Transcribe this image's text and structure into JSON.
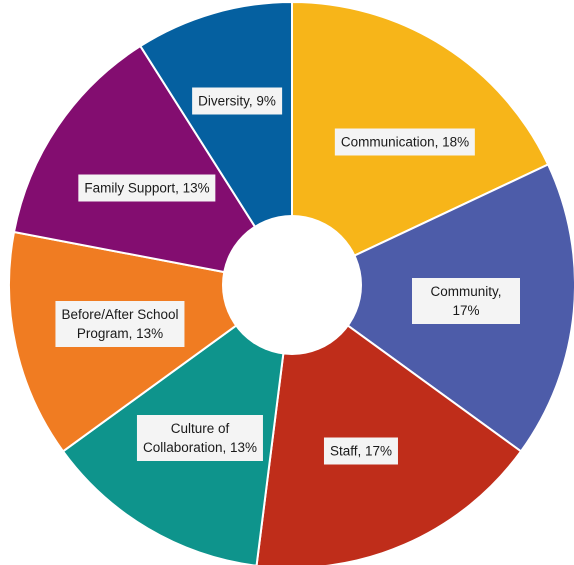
{
  "chart_data": {
    "type": "pie",
    "donut": true,
    "title": "",
    "start_angle_deg": 0,
    "direction": "clockwise",
    "slices": [
      {
        "label": "Communication, 18%",
        "value": 18,
        "color": "#F7B519"
      },
      {
        "label": "Community, 17%",
        "value": 17,
        "color": "#4D5CA9"
      },
      {
        "label": "Staff, 17%",
        "value": 17,
        "color": "#BF2D1A"
      },
      {
        "label": "Culture of\nCollaboration, 13%",
        "value": 13,
        "color": "#0E948C"
      },
      {
        "label": "Before/After School\nProgram, 13%",
        "value": 13,
        "color": "#F07C22"
      },
      {
        "label": "Family Support, 13%",
        "value": 13,
        "color": "#830D70"
      },
      {
        "label": "Diversity, 9%",
        "value": 9,
        "color": "#0560A0"
      }
    ]
  }
}
